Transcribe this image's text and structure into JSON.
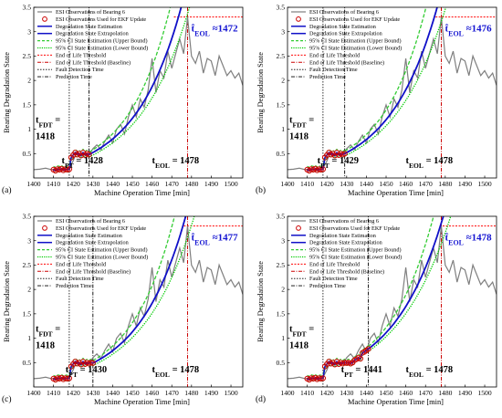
{
  "colors": {
    "esi": "#7f7f7f",
    "marker": "#cc0000",
    "estimation": "#1010c8",
    "extrapolation": "#1010c8",
    "ci_upper": "#33cc33",
    "ci_lower": "#00cc00",
    "eol_threshold": "#ff0000",
    "eol_baseline": "#cc0000",
    "fault_detection": "#000000",
    "prediction": "#000000",
    "teol_label": "#1414d2"
  },
  "legend_entries": [
    "ESI Observations of Bearing 6",
    "ESI Observations Used for EKF Update",
    "Degradation State Estimation",
    "Degradation State Extrapolation",
    "95% CI State Estimation (Upper Bound)",
    "95% CI State Estimation (Lower Bound)",
    "End of Life Threshold",
    "End of Life Threshold (Baseline)",
    "Fault Detection Time",
    "Prediction Time"
  ],
  "chart_data": [
    {
      "type": "line",
      "panel_label": "(a)",
      "xlabel": "Machine Operation Time [min]",
      "ylabel": "Bearing Degradation State",
      "xlim": [
        1400,
        1506
      ],
      "ylim": [
        0,
        3.5
      ],
      "xticks": [
        1400,
        1410,
        1420,
        1430,
        1440,
        1450,
        1460,
        1470,
        1480,
        1490,
        1500
      ],
      "yticks": [
        0.5,
        1,
        1.5,
        2,
        2.5,
        3,
        3.5
      ],
      "eol_threshold": 3.3,
      "fault_detection_time": 1418,
      "prediction_time": 1428,
      "eol_baseline_time": 1478,
      "estimated_eol": 1472,
      "annotations": {
        "tfdt_label": "t_FDT =",
        "tfdt_value": "1418",
        "tpt": "t_PT = 1428",
        "teol": "t_EOL = 1478",
        "teol_hat": "t̂_EOL ≈1472"
      },
      "esi_x": [
        1400,
        1403,
        1406,
        1409,
        1412,
        1415,
        1418,
        1420,
        1422,
        1424,
        1426,
        1428,
        1430,
        1432,
        1434,
        1436,
        1438,
        1440,
        1442,
        1444,
        1446,
        1448,
        1450,
        1452,
        1454,
        1456,
        1458,
        1460,
        1462,
        1464,
        1466,
        1468,
        1470,
        1472,
        1474,
        1476,
        1478,
        1480,
        1482,
        1484,
        1486,
        1488,
        1490,
        1492,
        1494,
        1496,
        1498,
        1500,
        1502,
        1504,
        1506
      ],
      "esi_y": [
        0.17,
        0.18,
        0.2,
        0.17,
        0.19,
        0.18,
        0.2,
        0.35,
        0.55,
        0.45,
        0.52,
        0.47,
        0.6,
        0.68,
        0.58,
        0.75,
        0.88,
        0.72,
        1.0,
        1.1,
        0.9,
        1.25,
        1.5,
        1.25,
        1.62,
        1.45,
        1.8,
        2.45,
        1.75,
        2.2,
        2.05,
        2.6,
        2.25,
        2.55,
        2.85,
        2.55,
        3.3,
        2.5,
        2.35,
        2.6,
        2.15,
        2.45,
        2.4,
        2.1,
        2.5,
        2.3,
        2.1,
        2.2,
        2.05,
        2.15,
        1.9
      ],
      "ekf_x": [
        1410,
        1411,
        1412,
        1413,
        1414,
        1415,
        1416,
        1417,
        1418,
        1419,
        1420,
        1421,
        1422,
        1423,
        1424,
        1425,
        1426,
        1427,
        1428
      ],
      "ekf_y": [
        0.17,
        0.15,
        0.18,
        0.17,
        0.19,
        0.16,
        0.18,
        0.17,
        0.18,
        0.42,
        0.47,
        0.52,
        0.48,
        0.5,
        0.46,
        0.52,
        0.47,
        0.5,
        0.48
      ],
      "extrapolation_k": 0.0425
    },
    {
      "type": "line",
      "panel_label": "(b)",
      "xlabel": "Machine Operation Time [min]",
      "ylabel": "Bearing Degradation State",
      "xlim": [
        1400,
        1506
      ],
      "ylim": [
        0,
        3.5
      ],
      "xticks": [
        1400,
        1410,
        1420,
        1430,
        1440,
        1450,
        1460,
        1470,
        1480,
        1490,
        1500
      ],
      "yticks": [
        0.5,
        1,
        1.5,
        2,
        2.5,
        3,
        3.5
      ],
      "eol_threshold": 3.3,
      "fault_detection_time": 1418,
      "prediction_time": 1429,
      "eol_baseline_time": 1478,
      "estimated_eol": 1476,
      "annotations": {
        "tfdt_label": "t_FDT =",
        "tfdt_value": "1418",
        "tpt": "t_PT = 1429",
        "teol": "t_EOL = 1478",
        "teol_hat": "t̂_EOL ≈1476"
      },
      "esi_x": [
        1400,
        1403,
        1406,
        1409,
        1412,
        1415,
        1418,
        1420,
        1422,
        1424,
        1426,
        1428,
        1430,
        1432,
        1434,
        1436,
        1438,
        1440,
        1442,
        1444,
        1446,
        1448,
        1450,
        1452,
        1454,
        1456,
        1458,
        1460,
        1462,
        1464,
        1466,
        1468,
        1470,
        1472,
        1474,
        1476,
        1478,
        1480,
        1482,
        1484,
        1486,
        1488,
        1490,
        1492,
        1494,
        1496,
        1498,
        1500,
        1502,
        1504,
        1506
      ],
      "esi_y": [
        0.17,
        0.18,
        0.2,
        0.17,
        0.19,
        0.18,
        0.2,
        0.35,
        0.55,
        0.45,
        0.52,
        0.47,
        0.6,
        0.68,
        0.58,
        0.75,
        0.88,
        0.72,
        1.0,
        1.1,
        0.9,
        1.25,
        1.5,
        1.25,
        1.62,
        1.45,
        1.8,
        2.45,
        1.75,
        2.2,
        2.05,
        2.6,
        2.25,
        2.55,
        2.85,
        2.55,
        3.3,
        2.5,
        2.35,
        2.6,
        2.15,
        2.45,
        2.4,
        2.1,
        2.5,
        2.3,
        2.1,
        2.2,
        2.05,
        2.15,
        1.9
      ],
      "ekf_x": [
        1410,
        1411,
        1412,
        1413,
        1414,
        1415,
        1416,
        1417,
        1418,
        1419,
        1420,
        1421,
        1422,
        1423,
        1424,
        1425,
        1426,
        1427,
        1428,
        1429
      ],
      "ekf_y": [
        0.17,
        0.15,
        0.18,
        0.17,
        0.19,
        0.16,
        0.18,
        0.17,
        0.18,
        0.42,
        0.47,
        0.52,
        0.48,
        0.5,
        0.46,
        0.52,
        0.47,
        0.5,
        0.48,
        0.5
      ],
      "extrapolation_k": 0.0415
    },
    {
      "type": "line",
      "panel_label": "(c)",
      "xlabel": "Machine Operation Time [min]",
      "ylabel": "Bearing Degradation State",
      "xlim": [
        1400,
        1506
      ],
      "ylim": [
        0,
        3.5
      ],
      "xticks": [
        1400,
        1410,
        1420,
        1430,
        1440,
        1450,
        1460,
        1470,
        1480,
        1490,
        1500
      ],
      "yticks": [
        0.5,
        1,
        1.5,
        2,
        2.5,
        3,
        3.5
      ],
      "eol_threshold": 3.3,
      "fault_detection_time": 1418,
      "prediction_time": 1430,
      "eol_baseline_time": 1478,
      "estimated_eol": 1477,
      "annotations": {
        "tfdt_label": "t_FDT =",
        "tfdt_value": "1418",
        "tpt": "t_PT = 1430",
        "teol": "t_EOL = 1478",
        "teol_hat": "t̂_EOL ≈1477"
      },
      "esi_x": [
        1400,
        1403,
        1406,
        1409,
        1412,
        1415,
        1418,
        1420,
        1422,
        1424,
        1426,
        1428,
        1430,
        1432,
        1434,
        1436,
        1438,
        1440,
        1442,
        1444,
        1446,
        1448,
        1450,
        1452,
        1454,
        1456,
        1458,
        1460,
        1462,
        1464,
        1466,
        1468,
        1470,
        1472,
        1474,
        1476,
        1478,
        1480,
        1482,
        1484,
        1486,
        1488,
        1490,
        1492,
        1494,
        1496,
        1498,
        1500,
        1502,
        1504,
        1506
      ],
      "esi_y": [
        0.17,
        0.18,
        0.2,
        0.17,
        0.19,
        0.18,
        0.2,
        0.35,
        0.55,
        0.45,
        0.52,
        0.47,
        0.6,
        0.68,
        0.58,
        0.75,
        0.88,
        0.72,
        1.0,
        1.1,
        0.9,
        1.25,
        1.5,
        1.25,
        1.62,
        1.45,
        1.8,
        2.45,
        1.75,
        2.2,
        2.05,
        2.6,
        2.25,
        2.55,
        2.85,
        2.55,
        3.3,
        2.5,
        2.35,
        2.6,
        2.15,
        2.45,
        2.4,
        2.1,
        2.5,
        2.3,
        2.1,
        2.2,
        2.05,
        2.15,
        1.9
      ],
      "ekf_x": [
        1410,
        1411,
        1412,
        1413,
        1414,
        1415,
        1416,
        1417,
        1418,
        1419,
        1420,
        1421,
        1422,
        1423,
        1424,
        1425,
        1426,
        1427,
        1428,
        1429,
        1430
      ],
      "ekf_y": [
        0.17,
        0.15,
        0.18,
        0.17,
        0.19,
        0.16,
        0.18,
        0.17,
        0.18,
        0.42,
        0.47,
        0.52,
        0.48,
        0.5,
        0.46,
        0.52,
        0.47,
        0.5,
        0.48,
        0.5,
        0.49
      ],
      "extrapolation_k": 0.0418
    },
    {
      "type": "line",
      "panel_label": "(d)",
      "xlabel": "Machine Operation Time [min]",
      "ylabel": "Bearing Degradation State",
      "xlim": [
        1400,
        1506
      ],
      "ylim": [
        0,
        3.5
      ],
      "xticks": [
        1400,
        1410,
        1420,
        1430,
        1440,
        1450,
        1460,
        1470,
        1480,
        1490,
        1500
      ],
      "yticks": [
        0.5,
        1,
        1.5,
        2,
        2.5,
        3,
        3.5
      ],
      "eol_threshold": 3.3,
      "fault_detection_time": 1418,
      "prediction_time": 1441,
      "eol_baseline_time": 1478,
      "estimated_eol": 1478,
      "annotations": {
        "tfdt_label": "t_FDT =",
        "tfdt_value": "1418",
        "tpt": "t_PT = 1441",
        "teol": "t_EOL = 1478",
        "teol_hat": "t̂_EOL ≈1478"
      },
      "esi_x": [
        1400,
        1403,
        1406,
        1409,
        1412,
        1415,
        1418,
        1420,
        1422,
        1424,
        1426,
        1428,
        1430,
        1432,
        1434,
        1436,
        1438,
        1440,
        1442,
        1444,
        1446,
        1448,
        1450,
        1452,
        1454,
        1456,
        1458,
        1460,
        1462,
        1464,
        1466,
        1468,
        1470,
        1472,
        1474,
        1476,
        1478,
        1480,
        1482,
        1484,
        1486,
        1488,
        1490,
        1492,
        1494,
        1496,
        1498,
        1500,
        1502,
        1504,
        1506
      ],
      "esi_y": [
        0.17,
        0.18,
        0.2,
        0.17,
        0.19,
        0.18,
        0.2,
        0.35,
        0.55,
        0.45,
        0.52,
        0.47,
        0.6,
        0.68,
        0.58,
        0.75,
        0.88,
        0.72,
        1.0,
        1.1,
        0.9,
        1.25,
        1.5,
        1.25,
        1.62,
        1.45,
        1.8,
        2.45,
        1.75,
        2.2,
        2.05,
        2.6,
        2.25,
        2.55,
        2.85,
        2.55,
        3.3,
        2.5,
        2.35,
        2.6,
        2.15,
        2.45,
        2.4,
        2.1,
        2.5,
        2.3,
        2.1,
        2.2,
        2.05,
        2.15,
        1.9
      ],
      "ekf_x": [
        1410,
        1411,
        1412,
        1413,
        1414,
        1415,
        1416,
        1417,
        1418,
        1419,
        1420,
        1421,
        1422,
        1423,
        1424,
        1425,
        1426,
        1427,
        1428,
        1429,
        1430,
        1431,
        1432,
        1433,
        1434,
        1435,
        1436,
        1437,
        1438,
        1439,
        1440,
        1441
      ],
      "ekf_y": [
        0.17,
        0.15,
        0.18,
        0.17,
        0.19,
        0.16,
        0.18,
        0.17,
        0.18,
        0.42,
        0.47,
        0.52,
        0.48,
        0.5,
        0.46,
        0.52,
        0.47,
        0.5,
        0.48,
        0.5,
        0.49,
        0.5,
        0.48,
        0.5,
        0.55,
        0.57,
        0.6,
        0.58,
        0.7,
        0.72,
        0.75,
        0.78
      ],
      "extrapolation_k": 0.0395
    }
  ]
}
